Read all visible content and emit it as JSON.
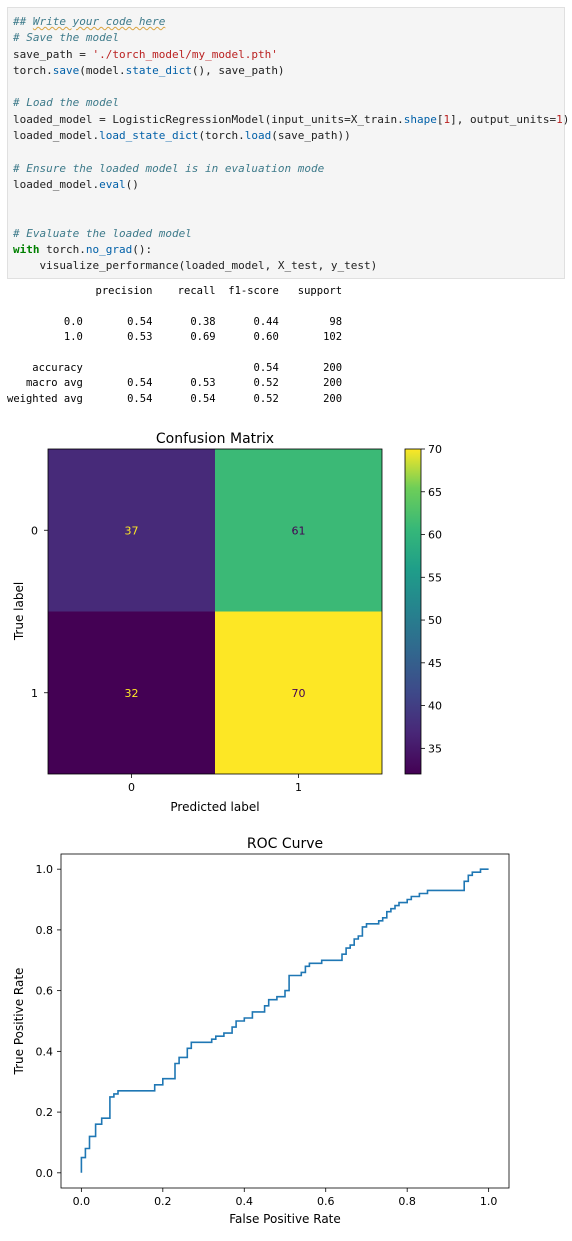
{
  "code_cell": {
    "lines": [
      [
        {
          "t": "## ",
          "c": "cm"
        },
        {
          "t": "Write your code here",
          "c": "cm cm-sq"
        }
      ],
      [
        {
          "t": "# Save the model",
          "c": "cm"
        }
      ],
      [
        {
          "t": "save_path = "
        },
        {
          "t": "'./torch_model/my_model.pth'",
          "c": "st"
        }
      ],
      [
        {
          "t": "torch."
        },
        {
          "t": "save",
          "c": "fn"
        },
        {
          "t": "(model."
        },
        {
          "t": "state_dict",
          "c": "fn"
        },
        {
          "t": "(), save_path)"
        }
      ],
      [
        {
          "t": ""
        }
      ],
      [
        {
          "t": "# Load the model",
          "c": "cm"
        }
      ],
      [
        {
          "t": "loaded_model = LogisticRegressionModel(input_units=X_train."
        },
        {
          "t": "shape",
          "c": "fn"
        },
        {
          "t": "["
        },
        {
          "t": "1",
          "c": "st"
        },
        {
          "t": "], output_units="
        },
        {
          "t": "1",
          "c": "st"
        },
        {
          "t": ")"
        }
      ],
      [
        {
          "t": "loaded_model."
        },
        {
          "t": "load_state_dict",
          "c": "fn"
        },
        {
          "t": "(torch."
        },
        {
          "t": "load",
          "c": "fn"
        },
        {
          "t": "(save_path))"
        }
      ],
      [
        {
          "t": ""
        }
      ],
      [
        {
          "t": "# Ensure the loaded model is in evaluation mode",
          "c": "cm"
        }
      ],
      [
        {
          "t": "loaded_model."
        },
        {
          "t": "eval",
          "c": "fn"
        },
        {
          "t": "()"
        }
      ],
      [
        {
          "t": ""
        }
      ],
      [
        {
          "t": ""
        }
      ],
      [
        {
          "t": "# Evaluate the loaded model",
          "c": "cm"
        }
      ],
      [
        {
          "t": "with",
          "c": "kw"
        },
        {
          "t": " torch."
        },
        {
          "t": "no_grad",
          "c": "fn"
        },
        {
          "t": "():"
        }
      ],
      [
        {
          "t": "    visualize_performance(loaded_model, X_test, y_test)"
        }
      ]
    ]
  },
  "report": {
    "lines": [
      "              precision    recall  f1-score   support",
      "",
      "         0.0       0.54      0.38      0.44        98",
      "         1.0       0.53      0.69      0.60       102",
      "",
      "    accuracy                           0.54       200",
      "   macro avg       0.54      0.53      0.52       200",
      "weighted avg       0.54      0.54      0.52       200"
    ]
  },
  "colors": {
    "cell_bg": "#f5f5f5",
    "roc_line": "#1f77b4"
  },
  "chart_data": [
    {
      "type": "heatmap",
      "title": "Confusion Matrix",
      "xlabel": "Predicted label",
      "ylabel": "True label",
      "x_categories": [
        "0",
        "1"
      ],
      "y_categories": [
        "0",
        "1"
      ],
      "values": [
        [
          37,
          61
        ],
        [
          32,
          70
        ]
      ],
      "colorbar": {
        "range": [
          32,
          70
        ],
        "ticks": [
          "35",
          "40",
          "45",
          "50",
          "55",
          "60",
          "65",
          "70"
        ],
        "colormap": "viridis"
      }
    },
    {
      "type": "line",
      "title": "ROC Curve",
      "xlabel": "False Positive Rate",
      "ylabel": "True Positive Rate",
      "xlim": [
        -0.05,
        1.05
      ],
      "ylim": [
        -0.05,
        1.05
      ],
      "xticks": [
        "0.0",
        "0.2",
        "0.4",
        "0.6",
        "0.8",
        "1.0"
      ],
      "yticks": [
        "0.0",
        "0.2",
        "0.4",
        "0.6",
        "0.8",
        "1.0"
      ],
      "grid": false,
      "series": [
        {
          "x": [
            0,
            0,
            0.01,
            0.01,
            0.02,
            0.02,
            0.035,
            0.035,
            0.05,
            0.05,
            0.07,
            0.07,
            0.08,
            0.08,
            0.09,
            0.09,
            0.1,
            0.1,
            0.18,
            0.18,
            0.2,
            0.2,
            0.23,
            0.23,
            0.24,
            0.24,
            0.26,
            0.26,
            0.27,
            0.27,
            0.32,
            0.32,
            0.33,
            0.33,
            0.35,
            0.35,
            0.37,
            0.37,
            0.38,
            0.38,
            0.4,
            0.4,
            0.42,
            0.42,
            0.45,
            0.45,
            0.46,
            0.46,
            0.48,
            0.48,
            0.5,
            0.5,
            0.51,
            0.51,
            0.54,
            0.54,
            0.55,
            0.55,
            0.56,
            0.56,
            0.58,
            0.58,
            0.59,
            0.59,
            0.64,
            0.64,
            0.65,
            0.65,
            0.66,
            0.66,
            0.67,
            0.67,
            0.68,
            0.68,
            0.69,
            0.69,
            0.7,
            0.7,
            0.73,
            0.73,
            0.74,
            0.74,
            0.75,
            0.75,
            0.76,
            0.76,
            0.77,
            0.77,
            0.78,
            0.78,
            0.8,
            0.8,
            0.81,
            0.81,
            0.83,
            0.83,
            0.85,
            0.85,
            0.94,
            0.94,
            0.95,
            0.95,
            0.96,
            0.96,
            0.98,
            0.98,
            1.0
          ],
          "y": [
            0,
            0.05,
            0.05,
            0.08,
            0.08,
            0.12,
            0.12,
            0.16,
            0.16,
            0.18,
            0.18,
            0.25,
            0.25,
            0.26,
            0.26,
            0.27,
            0.27,
            0.27,
            0.27,
            0.29,
            0.29,
            0.31,
            0.31,
            0.36,
            0.36,
            0.38,
            0.38,
            0.41,
            0.41,
            0.43,
            0.43,
            0.44,
            0.44,
            0.45,
            0.45,
            0.46,
            0.46,
            0.48,
            0.48,
            0.5,
            0.5,
            0.51,
            0.51,
            0.53,
            0.53,
            0.55,
            0.55,
            0.57,
            0.57,
            0.58,
            0.58,
            0.6,
            0.6,
            0.65,
            0.65,
            0.66,
            0.66,
            0.68,
            0.68,
            0.69,
            0.69,
            0.69,
            0.69,
            0.7,
            0.7,
            0.72,
            0.72,
            0.74,
            0.74,
            0.75,
            0.75,
            0.77,
            0.77,
            0.78,
            0.78,
            0.81,
            0.81,
            0.82,
            0.82,
            0.83,
            0.83,
            0.84,
            0.84,
            0.86,
            0.86,
            0.87,
            0.87,
            0.88,
            0.88,
            0.89,
            0.89,
            0.9,
            0.9,
            0.91,
            0.91,
            0.92,
            0.92,
            0.93,
            0.93,
            0.96,
            0.96,
            0.98,
            0.98,
            0.99,
            0.99,
            1.0,
            1.0
          ]
        }
      ]
    }
  ]
}
